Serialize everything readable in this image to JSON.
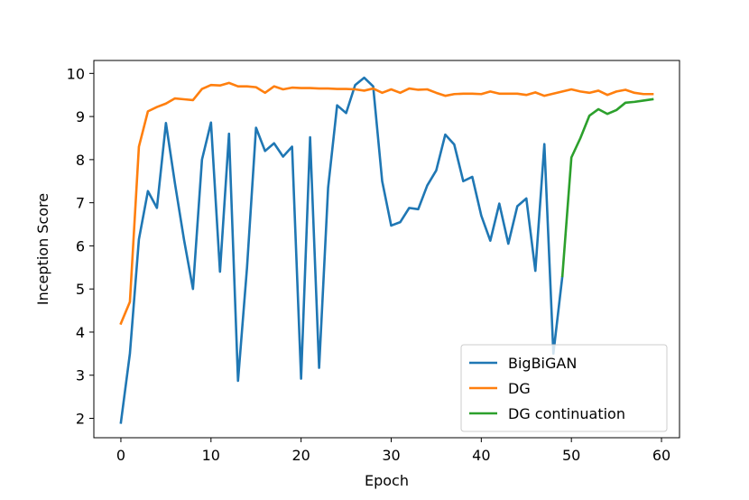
{
  "chart_data": {
    "type": "line",
    "xlabel": "Epoch",
    "ylabel": "Inception Score",
    "xlim": [
      -3,
      62
    ],
    "ylim": [
      1.55,
      10.3
    ],
    "xticks": [
      0,
      10,
      20,
      30,
      40,
      50,
      60
    ],
    "yticks": [
      2,
      3,
      4,
      5,
      6,
      7,
      8,
      9,
      10
    ],
    "grid": false,
    "legend_position": "lower-right",
    "series": [
      {
        "name": "BigBiGAN",
        "color": "#1f77b4",
        "x": [
          0,
          1,
          2,
          3,
          4,
          5,
          6,
          7,
          8,
          9,
          10,
          11,
          12,
          13,
          14,
          15,
          16,
          17,
          18,
          19,
          20,
          21,
          22,
          23,
          24,
          25,
          26,
          27,
          28,
          29,
          30,
          31,
          32,
          33,
          34,
          35,
          36,
          37,
          38,
          39,
          40,
          41,
          42,
          43,
          44,
          45,
          46,
          47,
          48,
          49
        ],
        "values": [
          1.9,
          3.5,
          6.15,
          7.27,
          6.88,
          8.85,
          7.45,
          6.15,
          5.0,
          8.0,
          8.86,
          5.4,
          8.6,
          2.87,
          5.5,
          8.74,
          8.2,
          8.38,
          8.07,
          8.3,
          2.92,
          8.52,
          3.17,
          7.35,
          9.26,
          9.08,
          9.73,
          9.9,
          9.7,
          7.5,
          6.47,
          6.55,
          6.88,
          6.85,
          7.4,
          7.75,
          8.58,
          8.35,
          7.5,
          7.6,
          6.7,
          6.12,
          6.98,
          6.05,
          6.92,
          7.1,
          5.42,
          8.36,
          3.5,
          5.3
        ]
      },
      {
        "name": "DG",
        "color": "#ff7f0e",
        "x": [
          0,
          1,
          2,
          3,
          4,
          5,
          6,
          7,
          8,
          9,
          10,
          11,
          12,
          13,
          14,
          15,
          16,
          17,
          18,
          19,
          20,
          21,
          22,
          23,
          24,
          25,
          26,
          27,
          28,
          29,
          30,
          31,
          32,
          33,
          34,
          35,
          36,
          37,
          38,
          39,
          40,
          41,
          42,
          43,
          44,
          45,
          46,
          47,
          48,
          49,
          50,
          51,
          52,
          53,
          54,
          55,
          56,
          57,
          58,
          59
        ],
        "values": [
          4.2,
          4.7,
          8.3,
          9.12,
          9.22,
          9.3,
          9.42,
          9.4,
          9.38,
          9.64,
          9.73,
          9.72,
          9.78,
          9.7,
          9.7,
          9.68,
          9.55,
          9.7,
          9.63,
          9.67,
          9.66,
          9.66,
          9.65,
          9.65,
          9.64,
          9.64,
          9.63,
          9.6,
          9.65,
          9.55,
          9.63,
          9.55,
          9.65,
          9.62,
          9.63,
          9.55,
          9.48,
          9.52,
          9.53,
          9.53,
          9.52,
          9.58,
          9.53,
          9.53,
          9.53,
          9.5,
          9.56,
          9.48,
          9.53,
          9.58,
          9.63,
          9.58,
          9.55,
          9.6,
          9.5,
          9.58,
          9.62,
          9.55,
          9.52,
          9.52
        ]
      },
      {
        "name": "DG continuation",
        "color": "#2ca02c",
        "x": [
          49,
          50,
          51,
          52,
          53,
          54,
          55,
          56,
          57,
          58,
          59
        ],
        "values": [
          5.3,
          8.05,
          8.5,
          9.02,
          9.17,
          9.06,
          9.15,
          9.32,
          9.34,
          9.37,
          9.4
        ]
      }
    ]
  }
}
